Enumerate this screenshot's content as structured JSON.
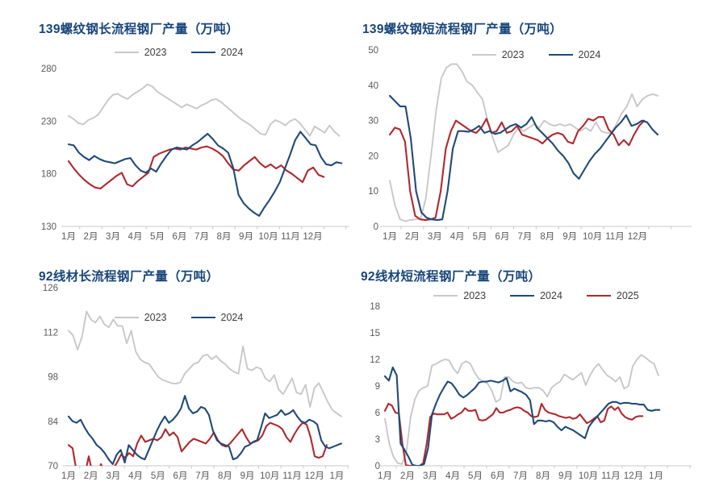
{
  "colors": {
    "background": "#ffffff",
    "title": "#17457a",
    "axis_label": "#595959",
    "axis_line": "#c9c9c9",
    "series_2023": "#c8c8c8",
    "series_2024": "#1f4a78",
    "series_2025": "#b0282e",
    "legend_text": "#3c3c3c"
  },
  "chart_data": [
    {
      "type": "line",
      "title": "139螺纹钢长流程钢厂产量（万吨）",
      "ylabel": "万吨",
      "ylim": [
        130,
        280
      ],
      "yticks": [
        130,
        180,
        230,
        280
      ],
      "x_labels": [
        "1月",
        "2月",
        "3月",
        "4月",
        "5月",
        "6月",
        "7月",
        "8月",
        "9月",
        "10月",
        "11月",
        "12月"
      ],
      "grid": false,
      "legend_position": "top-center",
      "legend": [
        {
          "label": "2023",
          "color": "#c8c8c8"
        },
        {
          "label": "2024",
          "color": "#1f4a78"
        }
      ],
      "series": [
        {
          "name": "2023",
          "color": "#c8c8c8",
          "end_month": 13.2,
          "values": [
            235,
            232,
            228,
            227,
            231,
            233,
            236,
            243,
            250,
            255,
            256,
            253,
            251,
            255,
            258,
            261,
            265,
            263,
            258,
            255,
            252,
            249,
            246,
            243,
            246,
            244,
            242,
            245,
            247,
            250,
            251,
            248,
            244,
            240,
            236,
            232,
            229,
            226,
            222,
            218,
            217,
            227,
            231,
            229,
            226,
            230,
            232,
            228,
            222,
            216,
            225,
            222,
            219,
            226,
            220,
            216
          ]
        },
        {
          "name": "2025",
          "color": "#b0282e",
          "end_month": 12.5,
          "values": [
            192,
            185,
            179,
            174,
            170,
            167,
            166,
            170,
            174,
            178,
            181,
            170,
            168,
            173,
            177,
            181,
            196,
            199,
            201,
            203,
            204,
            203,
            205,
            204,
            203,
            205,
            206,
            204,
            201,
            197,
            190,
            184,
            183,
            188,
            192,
            196,
            190,
            186,
            189,
            185,
            188,
            183,
            180,
            176,
            172,
            183,
            186,
            179,
            177
          ]
        },
        {
          "name": "2024",
          "color": "#1f4a78",
          "end_month": 13.3,
          "values": [
            208,
            207,
            200,
            196,
            193,
            197,
            194,
            192,
            191,
            190,
            192,
            194,
            195,
            188,
            183,
            181,
            185,
            182,
            190,
            197,
            203,
            205,
            204,
            203,
            207,
            210,
            214,
            218,
            213,
            207,
            204,
            200,
            185,
            160,
            152,
            147,
            143,
            140,
            148,
            155,
            163,
            172,
            185,
            198,
            212,
            220,
            214,
            208,
            207,
            196,
            189,
            188,
            191,
            190
          ]
        }
      ]
    },
    {
      "type": "line",
      "title": "139螺纹钢短流程钢厂产量（万吨）",
      "ylabel": "万吨",
      "ylim": [
        0,
        50
      ],
      "yticks": [
        0,
        10,
        20,
        30,
        40,
        50
      ],
      "x_labels": [
        "1月",
        "2月",
        "3月",
        "4月",
        "5月",
        "6月",
        "7月",
        "8月",
        "9月",
        "10月",
        "11月",
        "12月"
      ],
      "grid": false,
      "legend_position": "top-center",
      "legend": [
        {
          "label": "2023",
          "color": "#c8c8c8"
        },
        {
          "label": "2024",
          "color": "#1f4a78"
        }
      ],
      "series": [
        {
          "name": "2023",
          "color": "#c8c8c8",
          "end_month": 12.9,
          "values": [
            13,
            6,
            2,
            1.5,
            1.8,
            2,
            2.2,
            8,
            20,
            33,
            42,
            45,
            46,
            46,
            44,
            41,
            40,
            38,
            36,
            30,
            25,
            21,
            22,
            23,
            26,
            28,
            27,
            28,
            29,
            28,
            30,
            29,
            28.5,
            29,
            28.5,
            29,
            28,
            27,
            28,
            27,
            29.5,
            27,
            26.5,
            26.5,
            29,
            32,
            34,
            37.5,
            34,
            36,
            37,
            37.5,
            37
          ]
        },
        {
          "name": "2025",
          "color": "#b0282e",
          "end_month": 12.3,
          "values": [
            26,
            28,
            27.5,
            24,
            10,
            3,
            2,
            1.8,
            2,
            2.5,
            10,
            22,
            27,
            30,
            29,
            28,
            27,
            26.5,
            28,
            30.5,
            26.5,
            27,
            29.5,
            26.5,
            27,
            28.5,
            26,
            25.5,
            25,
            24.5,
            23.5,
            25,
            26,
            26.5,
            26,
            24,
            23.5,
            27,
            28.5,
            30.5,
            30,
            31,
            31,
            27.5,
            26,
            23,
            24.5,
            23,
            26,
            28.5,
            30
          ]
        },
        {
          "name": "2024",
          "color": "#1f4a78",
          "end_month": 12.9,
          "values": [
            37,
            35.5,
            34,
            34,
            25,
            10,
            4,
            2.5,
            2,
            1.8,
            2,
            10,
            22,
            27,
            27,
            26.8,
            27.5,
            28.5,
            26.5,
            27,
            26.2,
            26.5,
            27.5,
            28.5,
            29,
            28,
            29,
            31,
            28,
            26.5,
            25,
            23.5,
            21.5,
            20,
            18,
            15,
            13.5,
            16,
            18.5,
            20.5,
            22,
            24,
            26,
            28,
            29.5,
            31.5,
            28.5,
            29,
            30,
            29.5,
            27.5,
            26
          ]
        }
      ]
    },
    {
      "type": "line",
      "title": "92线材长流程钢厂产量（万吨）",
      "ylabel": "万吨",
      "ylim": [
        70,
        126
      ],
      "yticks": [
        70,
        84,
        98,
        112,
        126
      ],
      "x_labels": [
        "1月",
        "2月",
        "3月",
        "4月",
        "5月",
        "6月",
        "7月",
        "8月",
        "9月",
        "10月",
        "11月",
        "12月",
        "1月"
      ],
      "grid": false,
      "legend_position": "top-center",
      "legend": [
        {
          "label": "2023",
          "color": "#c8c8c8"
        },
        {
          "label": "2024",
          "color": "#1f4a78"
        }
      ],
      "series": [
        {
          "name": "2023",
          "color": "#c8c8c8",
          "end_month": 13.2,
          "values": [
            112.5,
            111,
            106.5,
            110.5,
            118.5,
            116,
            115,
            117,
            114.5,
            113.5,
            116,
            114,
            114,
            108.5,
            112.5,
            106,
            103.5,
            102.5,
            102,
            100,
            98,
            97,
            96.5,
            96,
            95.8,
            96.2,
            99,
            100.5,
            102,
            102.5,
            104.5,
            105,
            103.5,
            104.5,
            103,
            102,
            100.5,
            99.5,
            99,
            107.5,
            100.5,
            100,
            101,
            100.5,
            97.5,
            96.5,
            98.5,
            94,
            92.5,
            95,
            97.5,
            93,
            92.5,
            95.5,
            88.5,
            94.5,
            96,
            93,
            90,
            87.5,
            86.5,
            85.5
          ]
        },
        {
          "name": "2025",
          "color": "#b0282e",
          "end_month": 12.55,
          "values": [
            76.5,
            75.5,
            68,
            66,
            67,
            73,
            67,
            66,
            70.5,
            68,
            66,
            69,
            71,
            73.5,
            72.5,
            74,
            73,
            77,
            79.5,
            77.5,
            78,
            78.5,
            78,
            79,
            81.5,
            79.5,
            80.5,
            79,
            74.5,
            76,
            77.5,
            78.5,
            78,
            77.5,
            77,
            78.5,
            80.5,
            78,
            76.5,
            76,
            77,
            78.5,
            80,
            81.5,
            79,
            77,
            77.5,
            78,
            79.5,
            82.5,
            83.5,
            83,
            82.5,
            81.5,
            79,
            77.5,
            80,
            82,
            83.5,
            83,
            79,
            73,
            72.5,
            73,
            76.5
          ]
        },
        {
          "name": "2024",
          "color": "#1f4a78",
          "end_month": 13.2,
          "values": [
            85.5,
            84,
            83.5,
            84.5,
            82,
            80,
            78.5,
            76.5,
            75.5,
            74,
            72,
            70.5,
            73.5,
            75,
            71,
            76.5,
            75,
            73.5,
            72.5,
            72,
            75,
            78,
            81,
            83.5,
            85.5,
            83.5,
            84.5,
            86,
            88,
            92,
            88,
            86.5,
            87,
            88.5,
            88,
            86,
            81,
            78,
            77,
            76.5,
            76,
            72,
            72.5,
            74,
            76,
            76.5,
            77.5,
            78,
            82,
            86.5,
            85,
            85.5,
            86,
            87.5,
            86,
            86.5,
            87.5,
            85.5,
            84,
            83.5,
            84.5,
            84,
            83,
            78,
            76,
            75.5,
            76,
            76.5,
            77
          ]
        }
      ]
    },
    {
      "type": "line",
      "title": "92线材短流程钢厂产量（万吨）",
      "ylabel": "万吨",
      "ylim": [
        0,
        18
      ],
      "yticks": [
        0,
        3,
        6,
        9,
        12,
        15,
        18
      ],
      "x_labels": [
        "1月",
        "2月",
        "3月",
        "4月",
        "5月",
        "6月",
        "7月",
        "8月",
        "9月",
        "10月",
        "11月",
        "12月",
        "1月"
      ],
      "grid": false,
      "legend_position": "top-center",
      "legend": [
        {
          "label": "2023",
          "color": "#c8c8c8"
        },
        {
          "label": "2024",
          "color": "#1f4a78"
        },
        {
          "label": "2025",
          "color": "#b0282e"
        }
      ],
      "series": [
        {
          "name": "2023",
          "color": "#c8c8c8",
          "end_month": 13.1,
          "values": [
            5.3,
            2.5,
            1,
            0.3,
            0.2,
            1.5,
            5.5,
            7.5,
            8.5,
            8.8,
            9,
            11.3,
            11.5,
            11.8,
            12,
            11.9,
            11,
            10.4,
            11.5,
            11.8,
            11.5,
            10.5,
            9.8,
            9.5,
            9.3,
            8.5,
            7.2,
            7.5,
            10,
            10,
            9.5,
            9.3,
            9.4,
            8.8,
            8.7,
            8.8,
            8.8,
            8.5,
            7.8,
            8.8,
            9.2,
            9.5,
            10.3,
            10,
            9.7,
            10.1,
            10.5,
            9.1,
            10.2,
            11,
            11.5,
            10.8,
            10.2,
            9.9,
            9.5,
            10,
            8.7,
            9,
            11.2,
            12,
            12.5,
            12.2,
            11.8,
            11.5,
            10.2
          ]
        },
        {
          "name": "2025",
          "color": "#b0282e",
          "end_month": 12.4,
          "values": [
            6.2,
            7,
            6.8,
            6,
            5.9,
            2.5,
            0.1,
            0,
            0,
            0,
            0,
            0.3,
            2.5,
            5.5,
            5.9,
            5.8,
            5.8,
            5.8,
            6,
            5.3,
            5.5,
            5.8,
            6,
            6.5,
            6.2,
            6.2,
            6.3,
            5.2,
            5.1,
            5.2,
            5.5,
            5.8,
            6.5,
            6,
            6,
            6.2,
            6.3,
            6.5,
            6.6,
            6.5,
            6.2,
            6,
            5.6,
            5.5,
            5.6,
            7,
            6.3,
            6,
            5.9,
            5.8,
            5.6,
            5.5,
            5.4,
            5.5,
            5.3,
            5.4,
            5.8,
            5.3,
            4.8,
            5,
            5.3,
            5.6,
            4.9,
            5.1,
            6.4,
            6.7,
            6.3,
            6.6,
            5.9,
            5.5,
            5.3,
            5.2,
            5.5,
            5.6,
            5.6
          ]
        },
        {
          "name": "2024",
          "color": "#1f4a78",
          "end_month": 13.15,
          "values": [
            10.1,
            9.6,
            11.1,
            10.2,
            2.5,
            1.8,
            1,
            0.1,
            0,
            0,
            0.2,
            2,
            5.8,
            7,
            8,
            8.8,
            9.5,
            9.3,
            8.7,
            8,
            7.7,
            8,
            8.4,
            8.8,
            9.4,
            9.5,
            9.5,
            9.6,
            9.5,
            9.4,
            9.6,
            9.9,
            8.4,
            8.7,
            8.5,
            8.3,
            8,
            7.4,
            4.7,
            5.1,
            5.1,
            5,
            5.1,
            4.9,
            4.4,
            4,
            4.4,
            4.2,
            4,
            3.7,
            3.4,
            3.1,
            4.4,
            5,
            5.5,
            6,
            6.5,
            7,
            7.2,
            7.2,
            7,
            7.1,
            7.1,
            7,
            7,
            6.9,
            6.9,
            6.3,
            6.2,
            6.3,
            6.3
          ]
        }
      ]
    }
  ]
}
